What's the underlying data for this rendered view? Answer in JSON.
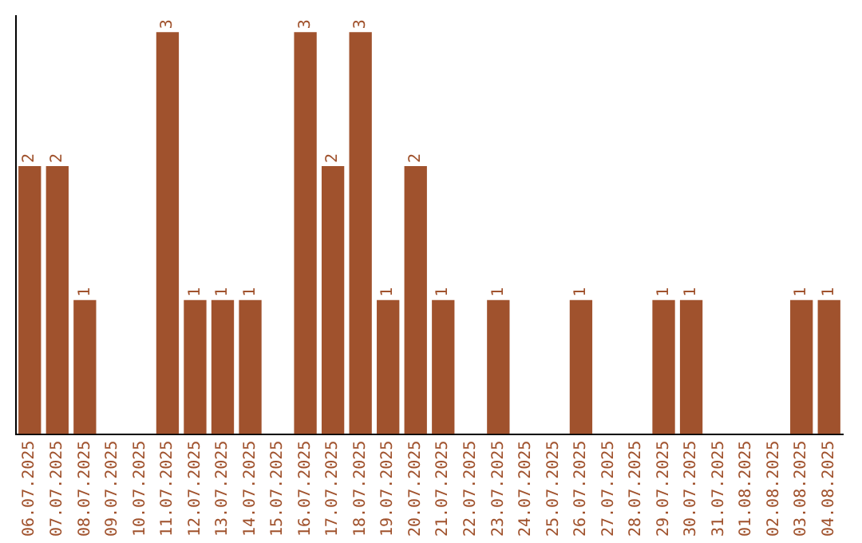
{
  "chart_data": {
    "type": "bar",
    "categories": [
      "06.07.2025",
      "07.07.2025",
      "08.07.2025",
      "09.07.2025",
      "10.07.2025",
      "11.07.2025",
      "12.07.2025",
      "13.07.2025",
      "14.07.2025",
      "15.07.2025",
      "16.07.2025",
      "17.07.2025",
      "18.07.2025",
      "19.07.2025",
      "20.07.2025",
      "21.07.2025",
      "22.07.2025",
      "23.07.2025",
      "24.07.2025",
      "25.07.2025",
      "26.07.2025",
      "27.07.2025",
      "28.07.2025",
      "29.07.2025",
      "30.07.2025",
      "31.07.2025",
      "01.08.2025",
      "02.08.2025",
      "03.08.2025",
      "04.08.2025"
    ],
    "values": [
      2,
      2,
      1,
      0,
      0,
      3,
      1,
      1,
      1,
      0,
      3,
      2,
      3,
      1,
      2,
      1,
      0,
      1,
      0,
      0,
      1,
      0,
      0,
      1,
      1,
      0,
      0,
      0,
      1,
      1
    ],
    "value_labels": [
      "2",
      "2",
      "1",
      null,
      null,
      "3",
      "1",
      "1",
      "1",
      null,
      "3",
      "2",
      "3",
      "1",
      "2",
      "1",
      null,
      "1",
      null,
      null,
      "1",
      null,
      null,
      "1",
      "1",
      null,
      null,
      null,
      "1",
      "1"
    ],
    "color": "#a0522d",
    "ylim": [
      0,
      3.12
    ],
    "tick_labels": "x",
    "grid": false,
    "legend": false
  }
}
